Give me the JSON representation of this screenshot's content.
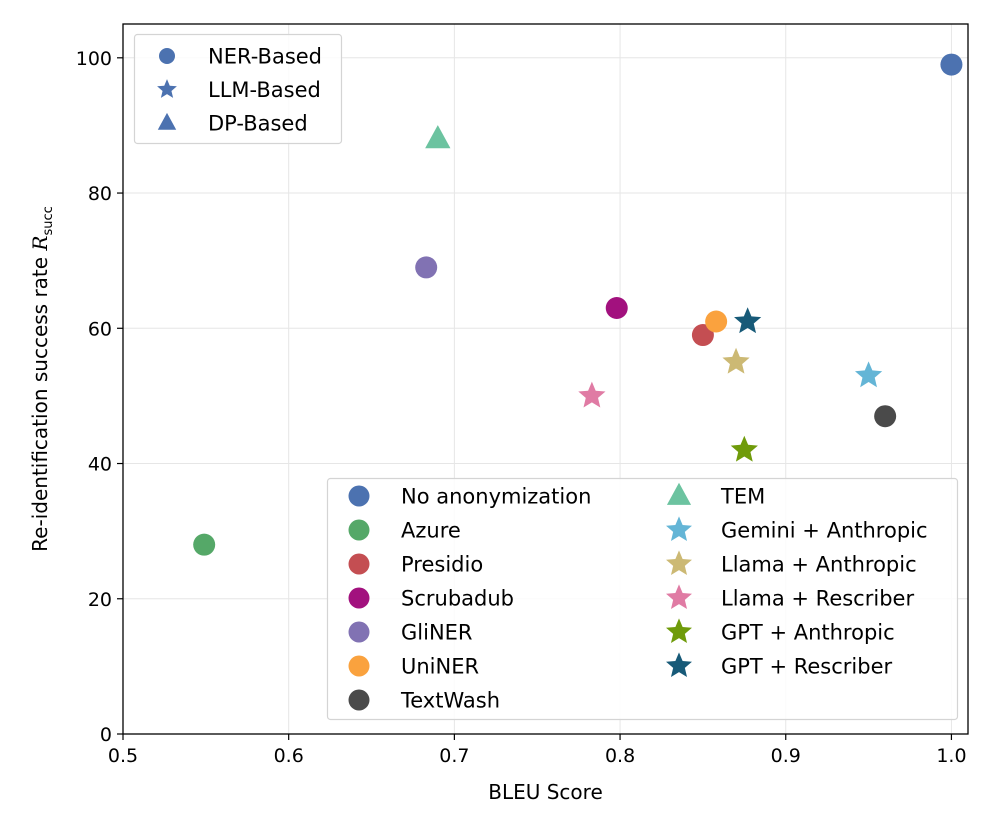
{
  "chart_data": {
    "type": "scatter",
    "xlabel": "BLEU Score",
    "ylabel": "Re-identification success rate ",
    "ylabel_math": "R",
    "ylabel_sub": "succ",
    "xlim": [
      0.5,
      1.01
    ],
    "ylim": [
      0,
      105
    ],
    "xticks": [
      0.5,
      0.6,
      0.7,
      0.8,
      0.9,
      1.0
    ],
    "xtick_labels": [
      "0.5",
      "0.6",
      "0.7",
      "0.8",
      "0.9",
      "1.0"
    ],
    "yticks": [
      0,
      20,
      40,
      60,
      80,
      100
    ],
    "ytick_labels": [
      "0",
      "20",
      "40",
      "60",
      "80",
      "100"
    ],
    "grid": true,
    "type_legend": {
      "placement": "upper-left",
      "entries": [
        {
          "label": "NER-Based",
          "marker": "circle",
          "color": "#4c72b0"
        },
        {
          "label": "LLM-Based",
          "marker": "star",
          "color": "#4c72b0"
        },
        {
          "label": "DP-Based",
          "marker": "triangle",
          "color": "#4c72b0"
        }
      ]
    },
    "series": [
      {
        "name": "No anonymization",
        "marker": "circle",
        "color": "#4c72b0",
        "x": 1.0,
        "y": 99
      },
      {
        "name": "Azure",
        "marker": "circle",
        "color": "#55a868",
        "x": 0.549,
        "y": 28
      },
      {
        "name": "Presidio",
        "marker": "circle",
        "color": "#c44e52",
        "x": 0.85,
        "y": 59
      },
      {
        "name": "Scrubadub",
        "marker": "circle",
        "color": "#a2117e",
        "x": 0.798,
        "y": 63
      },
      {
        "name": "GliNER",
        "marker": "circle",
        "color": "#8172b3",
        "x": 0.683,
        "y": 69
      },
      {
        "name": "UniNER",
        "marker": "circle",
        "color": "#faa23e",
        "x": 0.858,
        "y": 61
      },
      {
        "name": "TextWash",
        "marker": "circle",
        "color": "#4a4a4a",
        "x": 0.96,
        "y": 47
      },
      {
        "name": "TEM",
        "marker": "triangle",
        "color": "#6cc3a0",
        "x": 0.69,
        "y": 88
      },
      {
        "name": "Gemini + Anthropic",
        "marker": "star",
        "color": "#64b5d6",
        "x": 0.95,
        "y": 53
      },
      {
        "name": "Llama + Anthropic",
        "marker": "star",
        "color": "#ccb974",
        "x": 0.87,
        "y": 55
      },
      {
        "name": "Llama + Rescriber",
        "marker": "star",
        "color": "#e07ba4",
        "x": 0.783,
        "y": 50
      },
      {
        "name": "GPT + Anthropic",
        "marker": "star",
        "color": "#6f9b0a",
        "x": 0.875,
        "y": 42
      },
      {
        "name": "GPT + Rescriber",
        "marker": "star",
        "color": "#175a78",
        "x": 0.877,
        "y": 61
      }
    ],
    "method_legend": {
      "placement": "lower-right",
      "columns": 2
    }
  }
}
